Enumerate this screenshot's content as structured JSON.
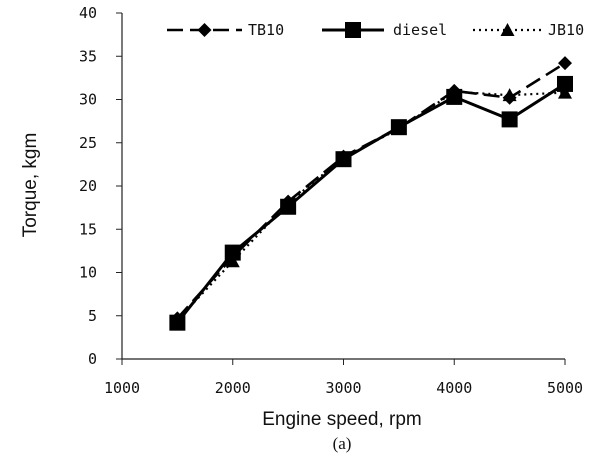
{
  "chart_data": {
    "type": "line",
    "x": [
      1500,
      2000,
      2500,
      3000,
      3500,
      4000,
      4500,
      5000
    ],
    "series": [
      {
        "name": "TB10",
        "values": [
          4.7,
          11.8,
          18.2,
          23.4,
          26.7,
          31.0,
          30.2,
          34.2
        ],
        "color": "#000000",
        "dash": "long-dash",
        "marker": "diamond"
      },
      {
        "name": "diesel",
        "values": [
          4.2,
          12.3,
          17.6,
          23.1,
          26.8,
          30.3,
          27.7,
          31.8
        ],
        "color": "#000000",
        "dash": "solid",
        "marker": "square"
      },
      {
        "name": "JB10",
        "values": [
          4.5,
          11.3,
          18.0,
          23.3,
          26.6,
          30.9,
          30.5,
          30.8
        ],
        "color": "#000000",
        "dash": "dotted",
        "marker": "triangle"
      }
    ],
    "xlabel": "Engine speed, rpm",
    "ylabel": "Torque, kgm",
    "xlim": [
      1000,
      5000
    ],
    "ylim": [
      0,
      40
    ],
    "xticks": [
      "1000",
      "2000",
      "3000",
      "4000",
      "5000"
    ],
    "yticks": [
      "0",
      "5",
      "10",
      "15",
      "20",
      "25",
      "30",
      "35",
      "40"
    ],
    "grid": false,
    "legend_position": "top"
  },
  "caption": "(a)"
}
